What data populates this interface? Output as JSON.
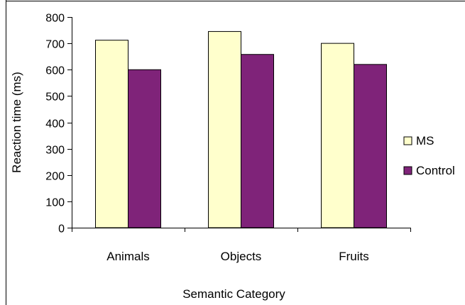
{
  "chart_data": {
    "type": "bar",
    "title": "",
    "xlabel": "Semantic Category",
    "ylabel": "Reaction time (ms)",
    "ylim": [
      0,
      800
    ],
    "yticks": [
      0,
      100,
      200,
      300,
      400,
      500,
      600,
      700,
      800
    ],
    "categories": [
      "Animals",
      "Objects",
      "Fruits"
    ],
    "series": [
      {
        "name": "MS",
        "values": [
          712,
          745,
          700
        ],
        "color": "#ffffcc"
      },
      {
        "name": "Control",
        "values": [
          600,
          658,
          620
        ],
        "color": "#7f2379"
      }
    ],
    "legend_position": "right",
    "grid": false
  }
}
